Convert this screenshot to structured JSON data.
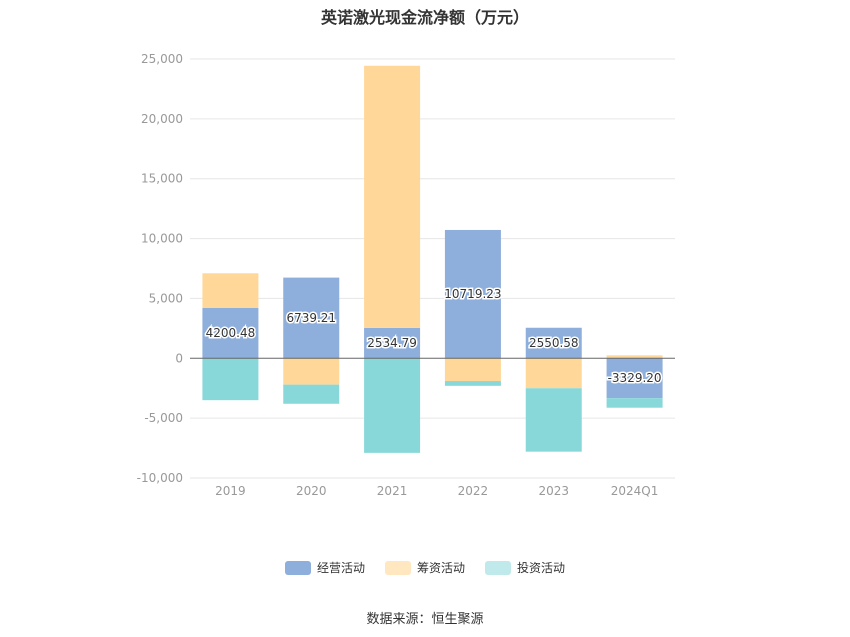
{
  "title": "英诺激光现金流净额（万元）",
  "source": "数据来源：恒生聚源",
  "colors": {
    "operating": "#8eaedc",
    "financing": "#ffd899",
    "investing": "#88d8da",
    "grid": "#e6e6e6",
    "axis_text": "#999999",
    "zero_line": "#666666"
  },
  "legend": [
    {
      "label": "经营活动",
      "color": "#8eaedc"
    },
    {
      "label": "筹资活动",
      "color": "#ffe7bf"
    },
    {
      "label": "投资活动",
      "color": "#bfe9ea"
    }
  ],
  "chart_data": {
    "type": "bar",
    "stacked": true,
    "title": "英诺激光现金流净额（万元）",
    "categories": [
      "2019",
      "2020",
      "2021",
      "2022",
      "2023",
      "2024Q1"
    ],
    "ylim": [
      -10000,
      25000
    ],
    "yticks": [
      -10000,
      -5000,
      0,
      5000,
      10000,
      15000,
      20000,
      25000
    ],
    "ytick_labels": [
      "-10,000",
      "-5,000",
      "0",
      "5,000",
      "10,000",
      "15,000",
      "20,000",
      "25,000"
    ],
    "grid": true,
    "legend_position": "bottom",
    "series": [
      {
        "name": "经营活动",
        "values": [
          4200.48,
          6739.21,
          2534.79,
          10719.23,
          2550.58,
          -3329.2
        ]
      },
      {
        "name": "筹资活动",
        "values": [
          2900,
          -2200,
          21900,
          -1900,
          -2500,
          250
        ]
      },
      {
        "name": "投资活动",
        "values": [
          -3500,
          -1600,
          -7900,
          -400,
          -5300,
          -800
        ]
      }
    ],
    "data_labels": [
      "4200.48",
      "6739.21",
      "2534.79",
      "10719.23",
      "2550.58",
      "-3329.20"
    ]
  }
}
